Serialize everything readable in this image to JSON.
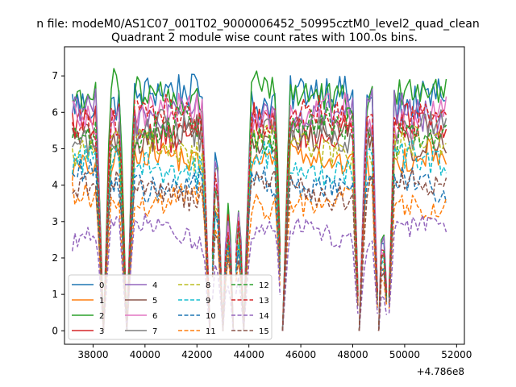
{
  "suptitle": "n file: modeM0/AS1C07_001T02_9000006452_50995cztM0_level2_quad_clean",
  "chart_data": {
    "type": "line",
    "title": "Quadrant 2 module wise count rates with 100.0s bins.",
    "xlabel": "",
    "ylabel": "",
    "x_offset_label": "+4.786e8",
    "xlim": [
      36900,
      52300
    ],
    "ylim": [
      -0.37,
      7.8
    ],
    "x_ticks": [
      38000,
      40000,
      42000,
      44000,
      46000,
      48000,
      50000,
      52000
    ],
    "x_tick_labels": [
      "38000",
      "40000",
      "42000",
      "44000",
      "46000",
      "48000",
      "50000",
      "52000"
    ],
    "y_ticks": [
      0,
      1,
      2,
      3,
      4,
      5,
      6,
      7
    ],
    "y_tick_labels": [
      "0",
      "1",
      "2",
      "3",
      "4",
      "5",
      "6",
      "7"
    ],
    "grid": false,
    "legend_position": "lower-left",
    "segments": [
      [
        37200,
        42500
      ],
      [
        42600,
        43400
      ],
      [
        43500,
        45200
      ],
      [
        45300,
        48200
      ],
      [
        48250,
        48950
      ],
      [
        49000,
        49350
      ],
      [
        49400,
        51600
      ]
    ],
    "dip_centers": [
      38400,
      39300,
      42500,
      43000,
      43400,
      43800,
      45300,
      48250,
      49000,
      49350
    ],
    "series": [
      {
        "name": "0",
        "color": "#1f77b4",
        "style": "solid",
        "level": 6.4
      },
      {
        "name": "1",
        "color": "#ff7f0e",
        "style": "solid",
        "level": 4.7
      },
      {
        "name": "2",
        "color": "#2ca02c",
        "style": "solid",
        "level": 6.5
      },
      {
        "name": "3",
        "color": "#d62728",
        "style": "solid",
        "level": 5.6
      },
      {
        "name": "4",
        "color": "#9467bd",
        "style": "solid",
        "level": 6.0
      },
      {
        "name": "5",
        "color": "#8c564b",
        "style": "solid",
        "level": 5.3
      },
      {
        "name": "6",
        "color": "#e377c2",
        "style": "solid",
        "level": 5.9
      },
      {
        "name": "7",
        "color": "#7f7f7f",
        "style": "solid",
        "level": 5.4
      },
      {
        "name": "8",
        "color": "#bcbd22",
        "style": "dashed",
        "level": 5.0
      },
      {
        "name": "9",
        "color": "#17becf",
        "style": "dashed",
        "level": 4.6
      },
      {
        "name": "10",
        "color": "#1f77b4",
        "style": "dashed",
        "level": 4.1
      },
      {
        "name": "11",
        "color": "#ff7f0e",
        "style": "dashed",
        "level": 3.6
      },
      {
        "name": "12",
        "color": "#2ca02c",
        "style": "dashed",
        "level": 5.5
      },
      {
        "name": "13",
        "color": "#d62728",
        "style": "dashed",
        "level": 5.8
      },
      {
        "name": "14",
        "color": "#9467bd",
        "style": "dashed",
        "level": 2.7
      },
      {
        "name": "15",
        "color": "#8c564b",
        "style": "dashed",
        "level": 3.9
      }
    ]
  }
}
